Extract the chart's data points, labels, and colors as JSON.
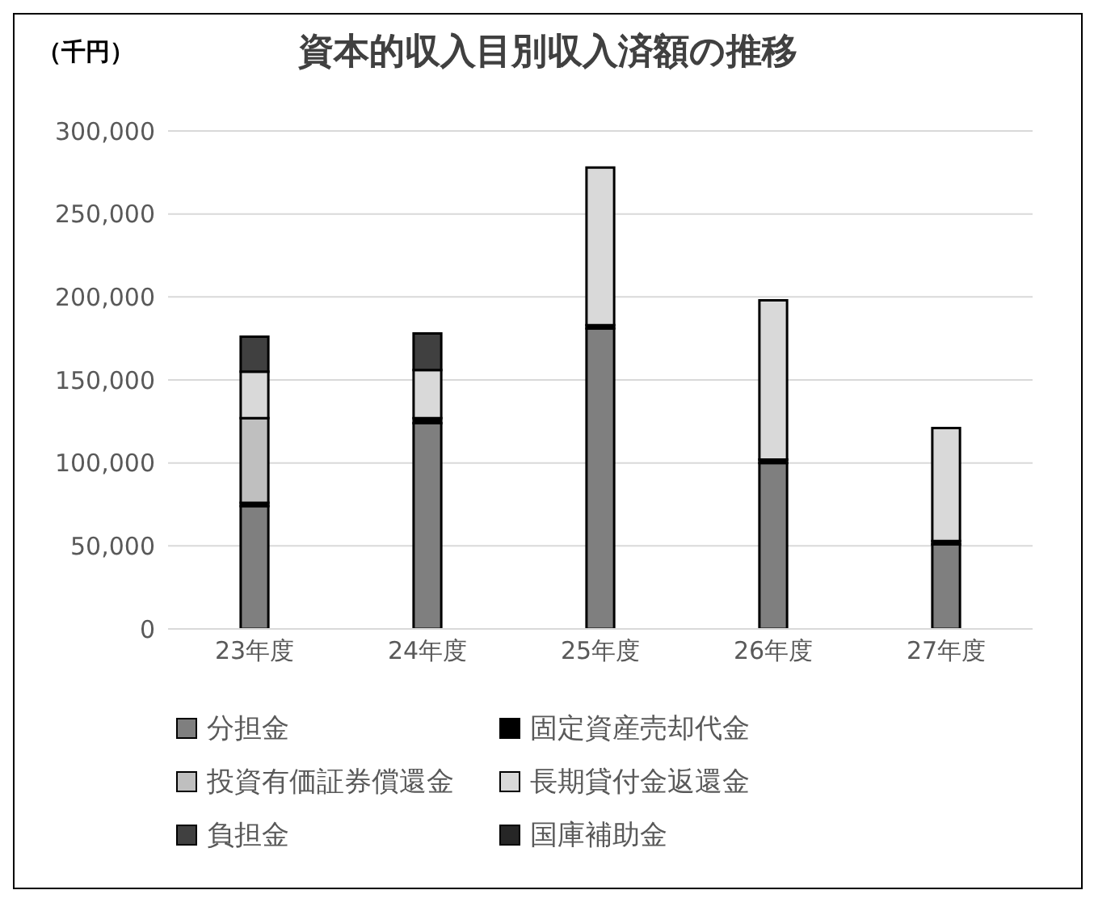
{
  "chart_data": {
    "type": "bar",
    "title": "資本的収入目別収入済額の推移",
    "ylabel": "（千円）",
    "stacked": true,
    "categories": [
      "23年度",
      "24年度",
      "25年度",
      "26年度",
      "27年度"
    ],
    "series": [
      {
        "name": "分担金",
        "color": "#7f7f7f",
        "values": [
          74000,
          124000,
          181000,
          100000,
          51000
        ]
      },
      {
        "name": "固定資産売却代金",
        "color": "#000000",
        "values": [
          2000,
          3000,
          2000,
          2000,
          2000
        ]
      },
      {
        "name": "投資有価証券償還金",
        "color": "#bfbfbf",
        "values": [
          51000,
          0,
          0,
          0,
          0
        ]
      },
      {
        "name": "長期貸付金返還金",
        "color": "#d9d9d9",
        "values": [
          28000,
          29000,
          95000,
          96000,
          68000
        ]
      },
      {
        "name": "負担金",
        "color": "#404040",
        "values": [
          21000,
          22000,
          0,
          0,
          0
        ]
      },
      {
        "name": "国庫補助金",
        "color": "#262626",
        "values": [
          0,
          0,
          0,
          0,
          0
        ]
      }
    ],
    "ylim": [
      0,
      300000
    ],
    "yticks": [
      0,
      {
        "value": 50000,
        "label": "50,000"
      },
      {
        "value": 100000,
        "label": "100,000"
      },
      {
        "value": 150000,
        "label": "150,000"
      },
      {
        "value": 200000,
        "label": "200,000"
      },
      {
        "value": 250000,
        "label": "250,000"
      },
      {
        "value": 300000,
        "label": "300,000"
      }
    ],
    "grid": "y",
    "legend": "bottom"
  }
}
